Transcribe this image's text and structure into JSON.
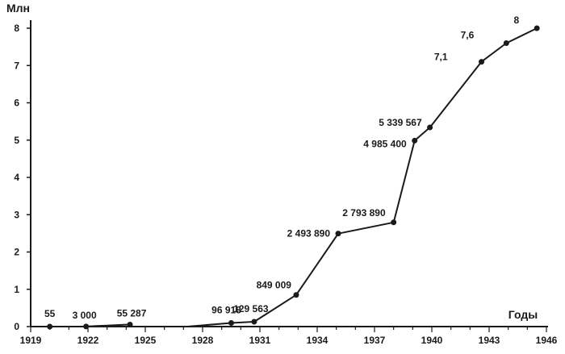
{
  "chart_data": {
    "type": "line",
    "ylabel": "Млн",
    "xlabel": "Годы",
    "xlim": [
      1919,
      1946
    ],
    "ylim": [
      0,
      8
    ],
    "x_ticks": [
      1919,
      1922,
      1925,
      1928,
      1931,
      1934,
      1937,
      1940,
      1943,
      1946
    ],
    "y_ticks": [
      0,
      1,
      2,
      3,
      4,
      5,
      6,
      7,
      8
    ],
    "grid": false,
    "series": [
      {
        "segments": [
          [
            {
              "x": 1920,
              "y": 5.5e-05,
              "label": "55"
            },
            {
              "x": 1921.9,
              "y": 0.003,
              "label": "3 000"
            },
            {
              "x": 1924.2,
              "y": 0.055287,
              "label": "55 287"
            }
          ],
          [
            {
              "x": 1927.2,
              "y": 0
            },
            {
              "x": 1929.5,
              "y": 0.096918,
              "label": "96 918"
            },
            {
              "x": 1930.7,
              "y": 0.129563,
              "label": "129 563"
            },
            {
              "x": 1932.9,
              "y": 0.849009,
              "label": "849 009"
            },
            {
              "x": 1935.1,
              "y": 2.49389,
              "label": "2 493 890"
            },
            {
              "x": 1938,
              "y": 2.79389,
              "label": "2 793 890"
            },
            {
              "x": 1939.1,
              "y": 4.9854,
              "label": "4 985 400"
            },
            {
              "x": 1939.9,
              "y": 5.339567,
              "label": "5 339 567"
            },
            {
              "x": 1942.6,
              "y": 7.1,
              "label": "7,1"
            },
            {
              "x": 1943.9,
              "y": 7.6,
              "label": "7,6"
            },
            {
              "x": 1945.5,
              "y": 8,
              "label": "8"
            }
          ]
        ]
      }
    ]
  }
}
